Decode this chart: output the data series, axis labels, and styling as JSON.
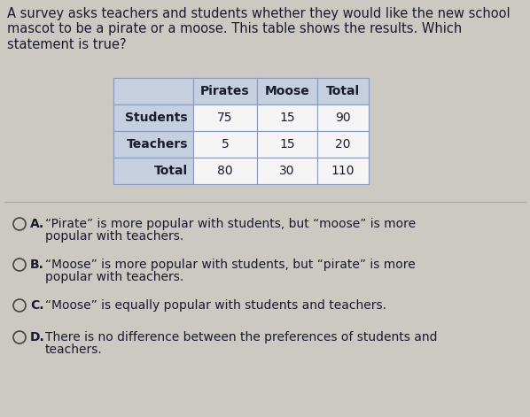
{
  "background_color": "#ccc8c2",
  "question_text": "A survey asks teachers and students whether they would like the new school\nmascot to be a pirate or a moose. This table shows the results. Which\nstatement is true?",
  "question_fontsize": 10.5,
  "table": {
    "headers": [
      "",
      "Pirates",
      "Moose",
      "Total"
    ],
    "rows": [
      [
        "Students",
        "75",
        "15",
        "90"
      ],
      [
        "Teachers",
        "5",
        "15",
        "20"
      ],
      [
        "Total",
        "80",
        "30",
        "110"
      ]
    ],
    "header_bg": "#c5cfe0",
    "row_label_bg": "#c5cfe0",
    "data_bg": "#f5f5f5",
    "border_color": "#8899bb",
    "header_fontsize": 10,
    "data_fontsize": 10
  },
  "choices": [
    {
      "label": "A.",
      "line1": "“Pirate” is more popular with students, but “moose” is more",
      "line2": "popular with teachers."
    },
    {
      "label": "B.",
      "line1": "“Moose” is more popular with students, but “pirate” is more",
      "line2": "popular with teachers."
    },
    {
      "label": "C.",
      "line1": "“Moose” is equally popular with students and teachers.",
      "line2": ""
    },
    {
      "label": "D.",
      "line1": "There is no difference between the preferences of students and",
      "line2": "teachers."
    }
  ],
  "choice_fontsize": 10,
  "divider_color": "#aaa69f",
  "circle_color": "#444444",
  "text_color": "#1a1a2e"
}
